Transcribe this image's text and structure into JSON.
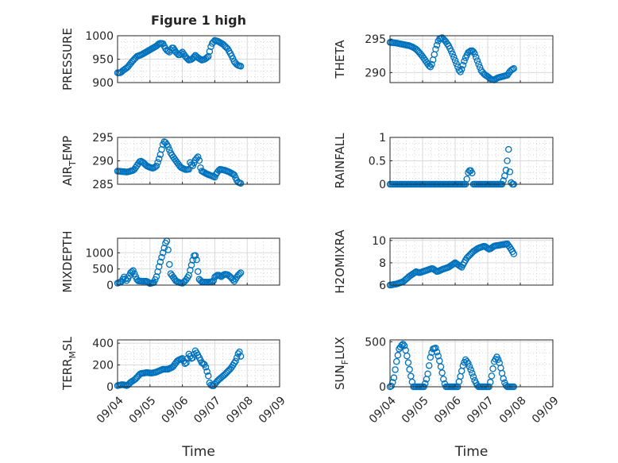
{
  "figure_title": "Figure 1 high",
  "x_axis_label": "Time",
  "x_ticks": [
    "09/04",
    "09/05",
    "09/06",
    "09/07",
    "09/08",
    "09/09"
  ],
  "colors": {
    "marker": "#0072BD",
    "axis": "#262626",
    "grid": "#d9d9d9"
  },
  "chart_data": [
    {
      "type": "scatter",
      "panel": "pressure",
      "title": "Figure 1 high",
      "ylabel_main": "PRESSURE",
      "ylabel_sub": "",
      "ylabel_tail": "",
      "xlabel": "",
      "xlim": [
        "09/04",
        "09/09"
      ],
      "ylim": [
        900,
        1000
      ],
      "yticks": [
        900,
        950,
        1000
      ],
      "ytick_labels": [
        "900",
        "950",
        "1000"
      ],
      "grid": true,
      "minor_grid": true,
      "keyframes": [
        [
          0,
          921
        ],
        [
          0.1,
          921
        ],
        [
          0.15,
          925
        ],
        [
          0.3,
          932
        ],
        [
          0.45,
          945
        ],
        [
          0.6,
          956
        ],
        [
          0.75,
          960
        ],
        [
          0.9,
          966
        ],
        [
          1.05,
          972
        ],
        [
          1.2,
          978
        ],
        [
          1.3,
          984
        ],
        [
          1.4,
          983
        ],
        [
          1.5,
          970
        ],
        [
          1.6,
          965
        ],
        [
          1.7,
          976
        ],
        [
          1.8,
          965
        ],
        [
          1.9,
          958
        ],
        [
          2.0,
          965
        ],
        [
          2.1,
          955
        ],
        [
          2.2,
          948
        ],
        [
          2.3,
          950
        ],
        [
          2.4,
          958
        ],
        [
          2.5,
          952
        ],
        [
          2.6,
          948
        ],
        [
          2.7,
          950
        ],
        [
          2.8,
          956
        ],
        [
          2.9,
          982
        ],
        [
          3.0,
          990
        ],
        [
          3.1,
          988
        ],
        [
          3.25,
          982
        ],
        [
          3.4,
          972
        ],
        [
          3.5,
          960
        ],
        [
          3.6,
          945
        ],
        [
          3.7,
          937
        ],
        [
          3.8,
          935
        ]
      ]
    },
    {
      "type": "scatter",
      "panel": "theta",
      "ylabel_main": "THETA",
      "ylabel_sub": "",
      "ylabel_tail": "",
      "xlabel": "",
      "xlim": [
        "09/04",
        "09/09"
      ],
      "ylim": [
        288.5,
        295.5
      ],
      "yticks": [
        290,
        295
      ],
      "ytick_labels": [
        "290",
        "295"
      ],
      "grid": true,
      "minor_grid": true,
      "keyframes": [
        [
          0,
          294.5
        ],
        [
          0.2,
          294.4
        ],
        [
          0.4,
          294.2
        ],
        [
          0.6,
          294.0
        ],
        [
          0.7,
          293.8
        ],
        [
          0.8,
          293.5
        ],
        [
          0.9,
          293.0
        ],
        [
          1.0,
          292.4
        ],
        [
          1.1,
          291.7
        ],
        [
          1.2,
          291.0
        ],
        [
          1.25,
          290.8
        ],
        [
          1.3,
          291.5
        ],
        [
          1.4,
          293.5
        ],
        [
          1.5,
          295.0
        ],
        [
          1.6,
          295.2
        ],
        [
          1.7,
          294.7
        ],
        [
          1.8,
          294.0
        ],
        [
          1.9,
          293.0
        ],
        [
          2.0,
          291.8
        ],
        [
          2.1,
          290.6
        ],
        [
          2.15,
          290.0
        ],
        [
          2.2,
          290.5
        ],
        [
          2.3,
          292.0
        ],
        [
          2.4,
          293.0
        ],
        [
          2.5,
          293.3
        ],
        [
          2.55,
          293.2
        ],
        [
          2.6,
          292.8
        ],
        [
          2.7,
          291.5
        ],
        [
          2.8,
          290.3
        ],
        [
          2.9,
          289.7
        ],
        [
          3.0,
          289.4
        ],
        [
          3.1,
          289.0
        ],
        [
          3.2,
          288.9
        ],
        [
          3.3,
          289.2
        ],
        [
          3.45,
          289.4
        ],
        [
          3.6,
          289.6
        ],
        [
          3.7,
          290.3
        ],
        [
          3.8,
          290.6
        ]
      ]
    },
    {
      "type": "scatter",
      "panel": "air_temp",
      "ylabel_main": "AIR",
      "ylabel_sub": "T",
      "ylabel_tail": "EMP",
      "xlabel": "",
      "xlim": [
        "09/04",
        "09/09"
      ],
      "ylim": [
        285,
        295
      ],
      "yticks": [
        285,
        290,
        295
      ],
      "ytick_labels": [
        "285",
        "290",
        "295"
      ],
      "grid": true,
      "minor_grid": true,
      "keyframes": [
        [
          0,
          287.8
        ],
        [
          0.3,
          287.6
        ],
        [
          0.5,
          288.0
        ],
        [
          0.6,
          289.0
        ],
        [
          0.7,
          290.0
        ],
        [
          0.8,
          289.6
        ],
        [
          0.9,
          288.9
        ],
        [
          1.0,
          288.6
        ],
        [
          1.1,
          288.4
        ],
        [
          1.2,
          288.9
        ],
        [
          1.3,
          290.8
        ],
        [
          1.4,
          293.5
        ],
        [
          1.45,
          294.2
        ],
        [
          1.55,
          293.2
        ],
        [
          1.65,
          291.5
        ],
        [
          1.8,
          290.0
        ],
        [
          1.95,
          288.6
        ],
        [
          2.1,
          288.1
        ],
        [
          2.2,
          288.2
        ],
        [
          2.25,
          290.0
        ],
        [
          2.3,
          288.6
        ],
        [
          2.4,
          290.2
        ],
        [
          2.5,
          291.0
        ],
        [
          2.55,
          288.7
        ],
        [
          2.6,
          287.8
        ],
        [
          2.75,
          287.2
        ],
        [
          2.9,
          286.8
        ],
        [
          3.0,
          286.5
        ],
        [
          3.05,
          287.3
        ],
        [
          3.15,
          288.2
        ],
        [
          3.3,
          288.0
        ],
        [
          3.45,
          287.6
        ],
        [
          3.6,
          287.0
        ],
        [
          3.7,
          285.5
        ],
        [
          3.8,
          285.2
        ]
      ]
    },
    {
      "type": "scatter",
      "panel": "rainfall",
      "ylabel_main": "RAINFALL",
      "ylabel_sub": "",
      "ylabel_tail": "",
      "xlabel": "",
      "xlim": [
        "09/04",
        "09/09"
      ],
      "ylim": [
        0,
        1
      ],
      "yticks": [
        0,
        0.5,
        1
      ],
      "ytick_labels": [
        "0",
        "0.5",
        "1"
      ],
      "grid": true,
      "minor_grid": true,
      "keyframes": [
        [
          0,
          0
        ],
        [
          2.34,
          0
        ],
        [
          2.38,
          0.22
        ],
        [
          2.42,
          0.28
        ],
        [
          2.46,
          0.3
        ],
        [
          2.5,
          0.28
        ],
        [
          2.54,
          0.2
        ],
        [
          2.56,
          0
        ],
        [
          3.45,
          0
        ],
        [
          3.5,
          0.13
        ],
        [
          3.55,
          0.25
        ],
        [
          3.6,
          0.5
        ],
        [
          3.63,
          0.9
        ],
        [
          3.66,
          0.43
        ],
        [
          3.7,
          0.1
        ],
        [
          3.73,
          0
        ],
        [
          3.8,
          0
        ]
      ]
    },
    {
      "type": "scatter",
      "panel": "mixdepth",
      "ylabel_main": "MIXDEPTH",
      "ylabel_sub": "",
      "ylabel_tail": "",
      "xlabel": "",
      "xlim": [
        "09/04",
        "09/09"
      ],
      "ylim": [
        0,
        1450
      ],
      "yticks": [
        0,
        500,
        1000
      ],
      "ytick_labels": [
        "0",
        "500",
        "1000"
      ],
      "grid": true,
      "minor_grid": true,
      "keyframes": [
        [
          0,
          60
        ],
        [
          0.12,
          110
        ],
        [
          0.2,
          250
        ],
        [
          0.28,
          140
        ],
        [
          0.33,
          220
        ],
        [
          0.4,
          380
        ],
        [
          0.48,
          450
        ],
        [
          0.55,
          280
        ],
        [
          0.62,
          130
        ],
        [
          0.75,
          120
        ],
        [
          0.9,
          120
        ],
        [
          1.0,
          50
        ],
        [
          1.12,
          80
        ],
        [
          1.2,
          260
        ],
        [
          1.3,
          650
        ],
        [
          1.4,
          1000
        ],
        [
          1.48,
          1300
        ],
        [
          1.53,
          1380
        ],
        [
          1.58,
          900
        ],
        [
          1.62,
          380
        ],
        [
          1.7,
          270
        ],
        [
          1.8,
          130
        ],
        [
          1.9,
          80
        ],
        [
          2.0,
          60
        ],
        [
          2.1,
          140
        ],
        [
          2.2,
          300
        ],
        [
          2.3,
          700
        ],
        [
          2.38,
          980
        ],
        [
          2.45,
          750
        ],
        [
          2.5,
          200
        ],
        [
          2.6,
          100
        ],
        [
          2.8,
          90
        ],
        [
          2.95,
          110
        ],
        [
          3.0,
          250
        ],
        [
          3.1,
          320
        ],
        [
          3.2,
          260
        ],
        [
          3.3,
          340
        ],
        [
          3.4,
          320
        ],
        [
          3.5,
          240
        ],
        [
          3.6,
          120
        ],
        [
          3.7,
          280
        ],
        [
          3.8,
          380
        ]
      ]
    },
    {
      "type": "scatter",
      "panel": "h2omixra",
      "ylabel_main": "H2OMIXRA",
      "ylabel_sub": "",
      "ylabel_tail": "",
      "xlabel": "",
      "xlim": [
        "09/04",
        "09/09"
      ],
      "ylim": [
        6,
        10.2
      ],
      "yticks": [
        6,
        8,
        10
      ],
      "ytick_labels": [
        "6",
        "8",
        "10"
      ],
      "grid": true,
      "minor_grid": true,
      "keyframes": [
        [
          0,
          6.0
        ],
        [
          0.2,
          6.1
        ],
        [
          0.4,
          6.3
        ],
        [
          0.6,
          6.8
        ],
        [
          0.8,
          7.2
        ],
        [
          0.9,
          7.1
        ],
        [
          1.1,
          7.3
        ],
        [
          1.3,
          7.5
        ],
        [
          1.45,
          7.2
        ],
        [
          1.6,
          7.4
        ],
        [
          1.8,
          7.6
        ],
        [
          2.0,
          8.0
        ],
        [
          2.2,
          7.6
        ],
        [
          2.35,
          8.4
        ],
        [
          2.55,
          9.0
        ],
        [
          2.7,
          9.3
        ],
        [
          2.9,
          9.5
        ],
        [
          3.05,
          9.2
        ],
        [
          3.2,
          9.5
        ],
        [
          3.4,
          9.6
        ],
        [
          3.6,
          9.7
        ],
        [
          3.7,
          9.3
        ],
        [
          3.8,
          8.8
        ]
      ]
    },
    {
      "type": "scatter",
      "panel": "terr_msl",
      "ylabel_main": "TERR",
      "ylabel_sub": "M",
      "ylabel_tail": "SL",
      "xlabel": "Time",
      "xlim": [
        "09/04",
        "09/09"
      ],
      "ylim": [
        0,
        430
      ],
      "yticks": [
        0,
        200,
        400
      ],
      "ytick_labels": [
        "0",
        "200",
        "400"
      ],
      "grid": true,
      "minor_grid": true,
      "keyframes": [
        [
          0,
          10
        ],
        [
          0.15,
          20
        ],
        [
          0.3,
          10
        ],
        [
          0.4,
          40
        ],
        [
          0.55,
          70
        ],
        [
          0.7,
          120
        ],
        [
          0.9,
          130
        ],
        [
          1.05,
          125
        ],
        [
          1.2,
          135
        ],
        [
          1.4,
          160
        ],
        [
          1.55,
          160
        ],
        [
          1.7,
          180
        ],
        [
          1.85,
          240
        ],
        [
          2.0,
          260
        ],
        [
          2.1,
          200
        ],
        [
          2.2,
          300
        ],
        [
          2.3,
          250
        ],
        [
          2.4,
          330
        ],
        [
          2.5,
          280
        ],
        [
          2.6,
          220
        ],
        [
          2.7,
          200
        ],
        [
          2.8,
          100
        ],
        [
          2.85,
          20
        ],
        [
          2.95,
          5
        ],
        [
          3.1,
          60
        ],
        [
          3.3,
          110
        ],
        [
          3.5,
          170
        ],
        [
          3.65,
          240
        ],
        [
          3.75,
          330
        ],
        [
          3.8,
          280
        ]
      ]
    },
    {
      "type": "scatter",
      "panel": "sun_flux",
      "ylabel_main": "SUN",
      "ylabel_sub": "F",
      "ylabel_tail": "LUX",
      "xlabel": "Time",
      "xlim": [
        "09/04",
        "09/09"
      ],
      "ylim": [
        0,
        520
      ],
      "yticks": [
        0,
        500
      ],
      "ytick_labels": [
        "0",
        "500"
      ],
      "grid": true,
      "minor_grid": true,
      "keyframes": [
        [
          0,
          0
        ],
        [
          0.05,
          10
        ],
        [
          0.12,
          100
        ],
        [
          0.2,
          280
        ],
        [
          0.28,
          420
        ],
        [
          0.36,
          460
        ],
        [
          0.42,
          480
        ],
        [
          0.5,
          380
        ],
        [
          0.58,
          230
        ],
        [
          0.66,
          80
        ],
        [
          0.72,
          0
        ],
        [
          1.05,
          0
        ],
        [
          1.15,
          120
        ],
        [
          1.25,
          350
        ],
        [
          1.32,
          420
        ],
        [
          1.4,
          430
        ],
        [
          1.5,
          320
        ],
        [
          1.58,
          190
        ],
        [
          1.66,
          50
        ],
        [
          1.72,
          0
        ],
        [
          2.08,
          0
        ],
        [
          2.15,
          100
        ],
        [
          2.25,
          250
        ],
        [
          2.32,
          300
        ],
        [
          2.4,
          260
        ],
        [
          2.5,
          170
        ],
        [
          2.6,
          70
        ],
        [
          2.7,
          0
        ],
        [
          3.05,
          0
        ],
        [
          3.12,
          120
        ],
        [
          3.2,
          280
        ],
        [
          3.28,
          330
        ],
        [
          3.35,
          280
        ],
        [
          3.42,
          180
        ],
        [
          3.5,
          60
        ],
        [
          3.58,
          0
        ],
        [
          3.8,
          0
        ]
      ]
    }
  ]
}
